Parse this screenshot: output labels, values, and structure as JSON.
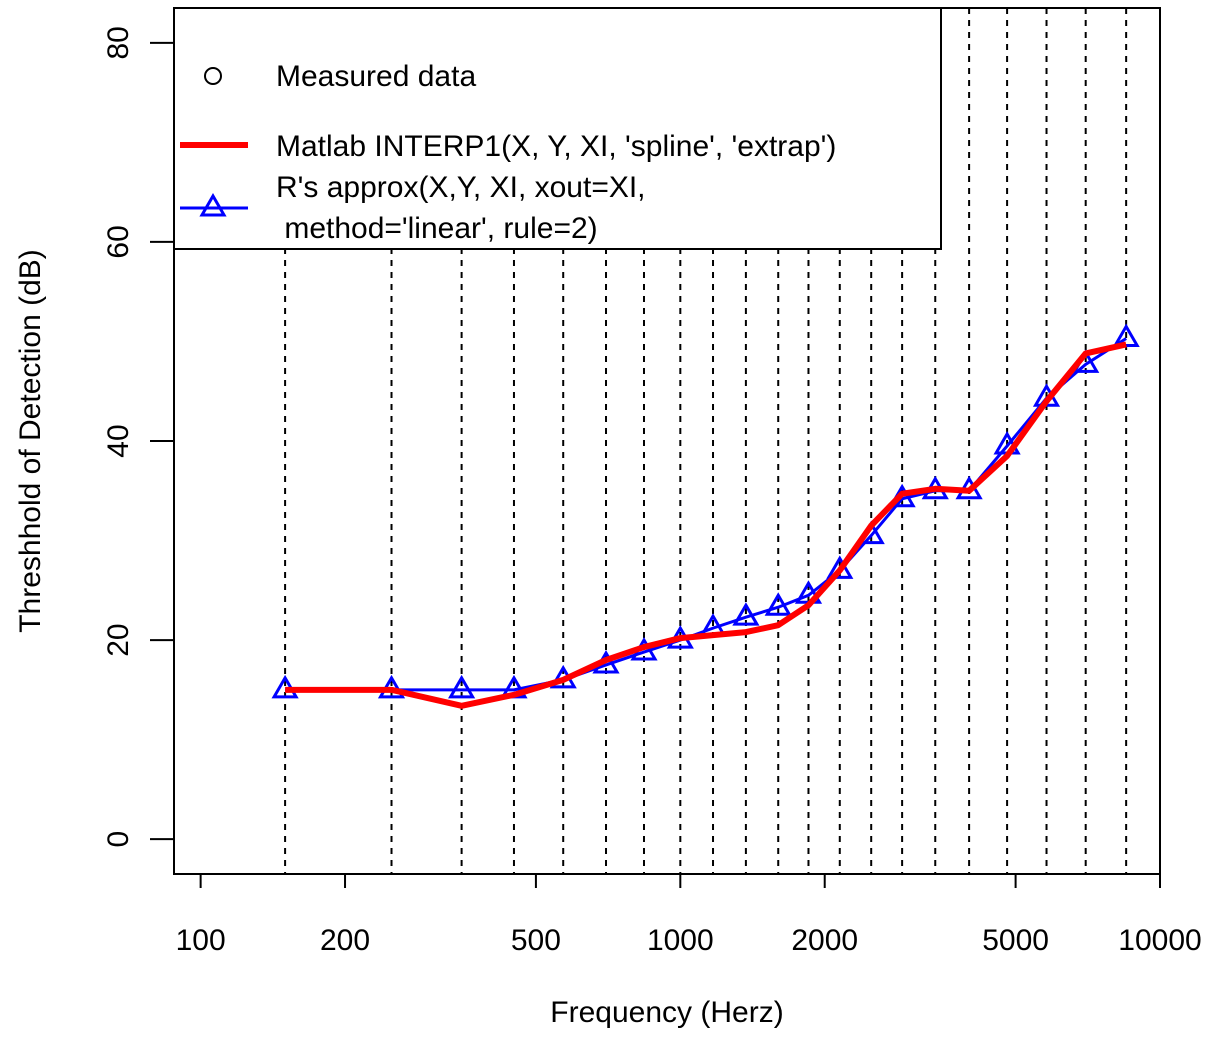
{
  "chart_data": {
    "type": "line",
    "xlabel": "Frequency (Herz)",
    "ylabel": "Threshhold of Detection (dB)",
    "x_scale": "log",
    "xlim": [
      88,
      10000
    ],
    "ylim": [
      -3.5,
      83.5
    ],
    "x_ticks": [
      100,
      200,
      500,
      1000,
      2000,
      5000,
      10000
    ],
    "x_tick_labels": [
      "100",
      "200",
      "500",
      "1000",
      "2000",
      "5000",
      "10000"
    ],
    "y_ticks": [
      0,
      20,
      40,
      60,
      80
    ],
    "y_tick_labels": [
      "0",
      "20",
      "40",
      "60",
      "80"
    ],
    "grid": "dashed vertical lines at each interpolation frequency",
    "legend_position": "top-left",
    "legend": [
      {
        "label": "Measured data",
        "style": "open circle"
      },
      {
        "label": "Matlab INTERP1(X, Y, XI, 'spline', 'extrap')",
        "style": "thick red line"
      },
      {
        "label_lines": [
          "R's approx(X,Y, XI, xout=XI,",
          " method='linear', rule=2)"
        ],
        "style": "blue line with open triangles"
      }
    ],
    "x": [
      150,
      250,
      350,
      450,
      570,
      700,
      840,
      1000,
      1170,
      1370,
      1600,
      1850,
      2150,
      2500,
      2900,
      3400,
      4000,
      4800,
      5800,
      7000,
      8500
    ],
    "series": [
      {
        "name": "Matlab INTERP1(X, Y, XI, 'spline', 'extrap')",
        "color": "#ff0000",
        "values": [
          15,
          15,
          13.4,
          14.5,
          16,
          18,
          19.3,
          20.2,
          20.5,
          20.8,
          21.5,
          23.5,
          27,
          31.5,
          34.7,
          35.2,
          35,
          38.5,
          44,
          48.8,
          49.7
        ]
      },
      {
        "name": "R's approx(X,Y, XI, xout=XI, method='linear', rule=2)",
        "color": "#0000ff",
        "values": [
          15,
          15,
          15,
          15,
          16,
          17.5,
          18.8,
          20,
          21.2,
          22.3,
          23.3,
          24.5,
          27,
          30.5,
          34.2,
          35,
          35,
          39.5,
          44.3,
          47.7,
          50.3
        ]
      }
    ]
  }
}
